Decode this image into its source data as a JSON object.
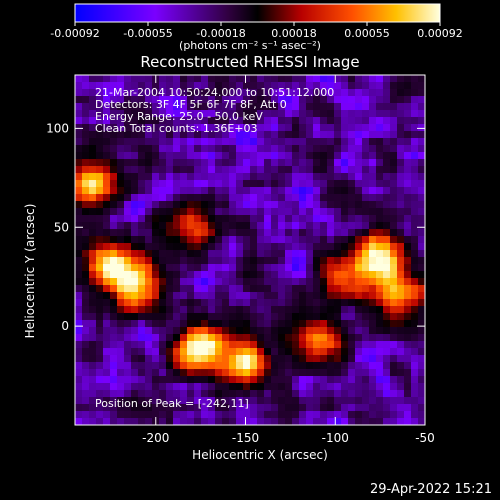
{
  "colorbar": {
    "ticks": [
      "-0.00092",
      "-0.00055",
      "-0.00018",
      "0.00018",
      "0.00055",
      "0.00092"
    ],
    "units": "(photons cm⁻² s⁻¹ asec⁻²)"
  },
  "title": "Reconstructed RHESSI Image",
  "info": {
    "time": "21-Mar-2004 10:50:24.000 to 10:51:12.000",
    "detectors": "Detectors: 3F 4F 5F 6F 7F 8F, Att 0",
    "energy": "Energy Range: 25.0 - 50.0 keV",
    "clean": "Clean     Total counts: 1.36E+03",
    "peak": "Position of Peak = [-242,11]"
  },
  "footer": "29-Apr-2022 15:21",
  "chart_data": {
    "type": "heatmap",
    "title": "Reconstructed RHESSI Image",
    "xlabel": "Heliocentric X (arcsec)",
    "ylabel": "Heliocentric Y (arcsec)",
    "xlim": [
      -245,
      -50
    ],
    "ylim": [
      -50,
      127
    ],
    "xticks": [
      -200,
      -150,
      -100,
      -50
    ],
    "yticks": [
      0,
      50,
      100
    ],
    "colorbar_range": [
      -0.00092,
      0.00092
    ],
    "colormap": [
      "#0000ff",
      "#7a00ff",
      "#2a0038",
      "#000000",
      "#b80000",
      "#ff5000",
      "#ffc000",
      "#ffffe0"
    ],
    "peak_position": [
      -242,
      11
    ],
    "bright_regions": [
      {
        "x": -235,
        "y": 72,
        "level": 0.9
      },
      {
        "x": -225,
        "y": 30,
        "level": 0.85
      },
      {
        "x": -210,
        "y": 20,
        "level": 0.8
      },
      {
        "x": -175,
        "y": -12,
        "level": 0.95
      },
      {
        "x": -150,
        "y": -18,
        "level": 0.8
      },
      {
        "x": -110,
        "y": -8,
        "level": 0.75
      },
      {
        "x": -75,
        "y": 35,
        "level": 0.9
      },
      {
        "x": -65,
        "y": 15,
        "level": 0.7
      },
      {
        "x": -95,
        "y": 25,
        "level": 0.6
      },
      {
        "x": -180,
        "y": 50,
        "level": 0.55
      }
    ]
  }
}
